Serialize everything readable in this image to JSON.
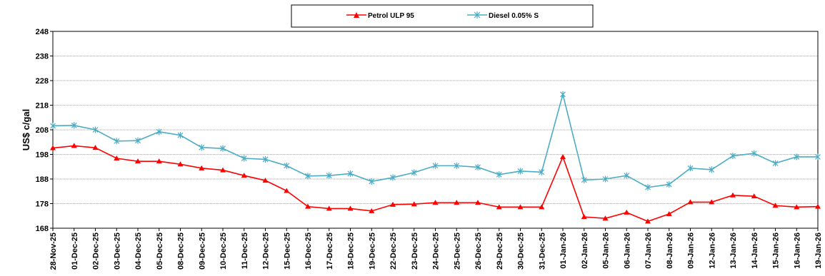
{
  "chart_data": {
    "type": "line",
    "ylabel": "US$ c/gal",
    "xlabel": "",
    "ylim": [
      168,
      248
    ],
    "yticks": [
      168,
      178,
      188,
      198,
      208,
      218,
      228,
      238,
      248
    ],
    "grid": true,
    "legend_position": "top-center",
    "categories": [
      "28-Nov-25",
      "01-Dec-25",
      "02-Dec-25",
      "03-Dec-25",
      "04-Dec-25",
      "05-Dec-25",
      "08-Dec-25",
      "09-Dec-25",
      "10-Dec-25",
      "11-Dec-25",
      "12-Dec-25",
      "15-Dec-25",
      "16-Dec-25",
      "17-Dec-25",
      "18-Dec-25",
      "19-Dec-25",
      "22-Dec-25",
      "23-Dec-25",
      "24-Dec-25",
      "25-Dec-25",
      "26-Dec-25",
      "29-Dec-25",
      "30-Dec-25",
      "31-Dec-25",
      "01-Jan-26",
      "02-Jan-26",
      "05-Jan-26",
      "06-Jan-26",
      "07-Jan-26",
      "08-Jan-26",
      "09-Jan-26",
      "12-Jan-26",
      "13-Jan-26",
      "14-Jan-26",
      "15-Jan-26",
      "16-Jan-26",
      "19-Jan-26"
    ],
    "series": [
      {
        "name": "Petrol ULP 95",
        "color": "#ff0000",
        "marker": "triangle",
        "values": [
          200.6,
          201.5,
          200.7,
          196.4,
          195.2,
          195.2,
          194.0,
          192.4,
          191.6,
          189.4,
          187.4,
          183.2,
          176.8,
          176.0,
          176.0,
          175.0,
          177.6,
          177.8,
          178.4,
          178.4,
          178.4,
          176.6,
          176.6,
          176.6,
          197.0,
          172.6,
          172.0,
          174.4,
          170.8,
          173.8,
          178.6,
          178.6,
          181.4,
          181.0,
          177.2,
          176.6,
          176.8
        ]
      },
      {
        "name": "Diesel 0.05% S",
        "color": "#4bacc6",
        "marker": "asterisk",
        "values": [
          209.6,
          209.8,
          208.0,
          203.4,
          203.6,
          207.2,
          205.8,
          200.8,
          200.4,
          196.4,
          196.0,
          193.4,
          189.2,
          189.4,
          190.2,
          187.0,
          188.6,
          190.6,
          193.4,
          193.4,
          192.8,
          189.8,
          191.2,
          190.8,
          222.4,
          187.6,
          188.0,
          189.4,
          184.6,
          185.8,
          192.4,
          191.8,
          197.4,
          198.4,
          194.4,
          197.0,
          197.0
        ]
      }
    ]
  }
}
